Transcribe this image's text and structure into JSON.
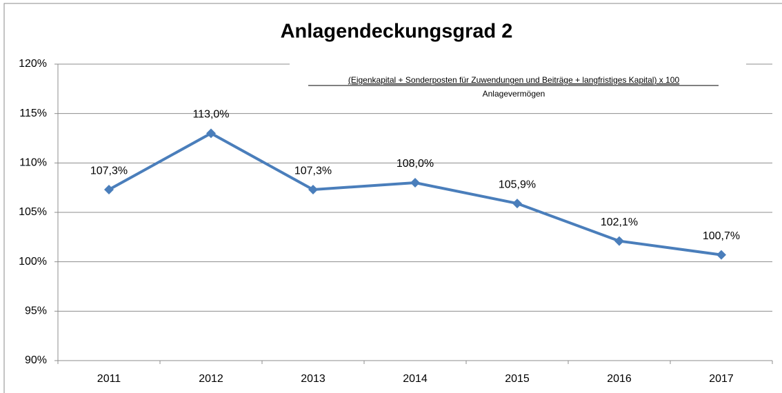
{
  "chart_data": {
    "type": "line",
    "title": "Anlagendeckungsgrad 2",
    "annotations": [
      "(Eigenkapital +  Sonderposten für Zuwendungen und Beiträge + langfristiges Kapital) x 100",
      "Anlagevermögen"
    ],
    "categories": [
      "2011",
      "2012",
      "2013",
      "2014",
      "2015",
      "2016",
      "2017"
    ],
    "series": [
      {
        "name": "Anlagendeckungsgrad 2",
        "color": "#4a7ebb",
        "values": [
          107.3,
          113.0,
          107.3,
          108.0,
          105.9,
          102.1,
          100.7
        ],
        "value_labels": [
          "107,3%",
          "113,0%",
          "107,3%",
          "108,0%",
          "105,9%",
          "102,1%",
          "100,7%"
        ]
      }
    ],
    "ylim": [
      90,
      120
    ],
    "yticks": [
      {
        "value": 90,
        "label": "90%"
      },
      {
        "value": 95,
        "label": "95%"
      },
      {
        "value": 100,
        "label": "100%"
      },
      {
        "value": 105,
        "label": "105%"
      },
      {
        "value": 110,
        "label": "110%"
      },
      {
        "value": 115,
        "label": "115%"
      },
      {
        "value": 120,
        "label": "120%"
      }
    ],
    "grid": true,
    "marker": "diamond"
  }
}
